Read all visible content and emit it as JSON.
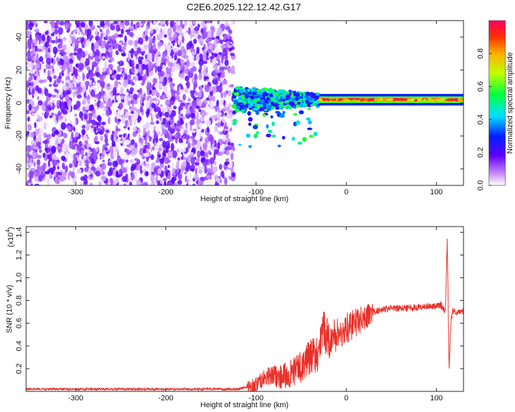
{
  "title": "C2E6.2025.122.12.42.G17",
  "chart_data": [
    {
      "type": "heatmap",
      "xlabel": "Height of straight line (km)",
      "ylabel": "Frequency (Hz)",
      "xlim": [
        -355,
        130
      ],
      "ylim": [
        -50,
        50
      ],
      "xticks": [
        -300,
        -200,
        -100,
        0,
        100
      ],
      "yticks": [
        -40,
        -20,
        0,
        20,
        40
      ],
      "colorbar": {
        "label": "Normalized spectral amplitude",
        "range": [
          0,
          1
        ],
        "ticks": [
          "0.0",
          "0.2",
          "0.4",
          "0.6",
          "0.8"
        ],
        "tick_values": [
          0,
          0.2,
          0.4,
          0.6,
          0.8
        ]
      },
      "regions": [
        {
          "name": "noise",
          "x_range": [
            -355,
            -125
          ],
          "freq_range": [
            -50,
            50
          ],
          "amplitude_range": [
            0.0,
            0.2
          ]
        },
        {
          "name": "transition",
          "x_range": [
            -125,
            -30
          ],
          "freq_center": 2,
          "freq_spread": 8,
          "amplitude_range": [
            0.2,
            0.6
          ]
        },
        {
          "name": "carrier",
          "x_range": [
            -30,
            130
          ],
          "freq_center": 2,
          "amplitude_range": [
            0.7,
            1.0
          ]
        }
      ]
    },
    {
      "type": "line",
      "xlabel": "Height of straight line (km)",
      "ylabel": "SNR (10 * v/v)",
      "y_multiplier": "(x10",
      "y_multiplier_exp": "4",
      "y_multiplier_close": ")",
      "xlim": [
        -355,
        130
      ],
      "ylim": [
        0,
        1.45
      ],
      "xticks": [
        -300,
        -200,
        -100,
        0,
        100
      ],
      "yticks": [
        "0.2",
        "0.4",
        "0.6",
        "0.8",
        "1.0",
        "1.2",
        "1.4"
      ],
      "ytick_values": [
        0.2,
        0.4,
        0.6,
        0.8,
        1.0,
        1.2,
        1.4
      ],
      "color": "#e8302a",
      "series": [
        {
          "x": [
            -355,
            -300,
            -250,
            -200,
            -150,
            -120,
            -110,
            -100,
            -90,
            -80,
            -70,
            -60,
            -50,
            -40,
            -30,
            -25,
            -20,
            -10,
            0,
            10,
            20,
            30,
            40,
            50,
            60,
            70,
            80,
            90,
            100,
            105,
            110,
            112,
            114,
            116,
            118,
            120,
            130
          ],
          "y": [
            0.02,
            0.02,
            0.02,
            0.02,
            0.02,
            0.02,
            0.04,
            0.06,
            0.12,
            0.14,
            0.13,
            0.16,
            0.22,
            0.3,
            0.35,
            0.55,
            0.45,
            0.5,
            0.55,
            0.6,
            0.65,
            0.7,
            0.72,
            0.73,
            0.73,
            0.74,
            0.74,
            0.75,
            0.75,
            0.76,
            0.7,
            1.35,
            0.2,
            0.6,
            0.72,
            0.7,
            0.71
          ]
        }
      ]
    }
  ]
}
